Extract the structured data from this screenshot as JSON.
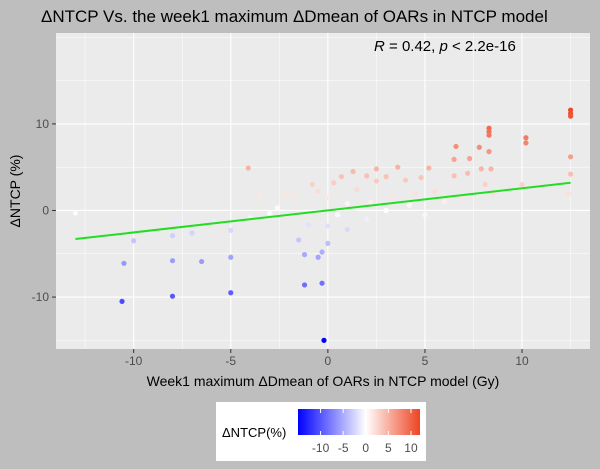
{
  "chart_data": {
    "type": "scatter",
    "title": "ΔNTCP Vs. the week1 maximum ΔDmean of OARs in NTCP model",
    "annotation": {
      "r_label": "R",
      "r_value": " = 0.42, ",
      "p_label": "p",
      "p_value": " < 2.2e-16"
    },
    "xlabel": "Week1 maximum ΔDmean of OARs in NTCP model (Gy)",
    "ylabel": "ΔNTCP (%)",
    "xlim": [
      -14,
      13.5
    ],
    "ylim": [
      -16,
      20.5
    ],
    "x_ticks": [
      -10,
      -5,
      0,
      5,
      10
    ],
    "y_ticks": [
      -10,
      0,
      10
    ],
    "grid": true,
    "regression_line": {
      "x": [
        -13,
        12.5
      ],
      "y": [
        -3.3,
        3.2
      ],
      "color": "#22dd22"
    },
    "color_scale": {
      "title": "ΔNTCP(%)",
      "ticks": [
        -10,
        -5,
        0,
        5,
        10
      ],
      "low": "#0000ff",
      "mid": "#ffffff",
      "high": "#ee4422",
      "limits": [
        -15,
        12
      ]
    },
    "points": [
      {
        "x": -13,
        "y": -0.3
      },
      {
        "x": -10.6,
        "y": -10.5
      },
      {
        "x": -10.5,
        "y": -6.1
      },
      {
        "x": -10,
        "y": -3.5
      },
      {
        "x": -8,
        "y": -9.9
      },
      {
        "x": -8,
        "y": -5.8
      },
      {
        "x": -8,
        "y": -2.9
      },
      {
        "x": -7.8,
        "y": -1.3
      },
      {
        "x": -7,
        "y": -2.6
      },
      {
        "x": -6.5,
        "y": -5.9
      },
      {
        "x": -5.9,
        "y": -1.2
      },
      {
        "x": -5,
        "y": -9.5
      },
      {
        "x": -5,
        "y": -5.4
      },
      {
        "x": -5,
        "y": -2.3
      },
      {
        "x": -4.1,
        "y": 4.9
      },
      {
        "x": -4,
        "y": -0.8
      },
      {
        "x": -3.5,
        "y": 1.6
      },
      {
        "x": -3,
        "y": -0.3
      },
      {
        "x": -2.6,
        "y": 0.3
      },
      {
        "x": -2.2,
        "y": 1.7
      },
      {
        "x": -1.8,
        "y": 1.7
      },
      {
        "x": -1.5,
        "y": -3.4
      },
      {
        "x": -1.2,
        "y": -8.6
      },
      {
        "x": -1.2,
        "y": -5.1
      },
      {
        "x": -1,
        "y": -1.7
      },
      {
        "x": -0.8,
        "y": 3
      },
      {
        "x": -0.5,
        "y": 2.2
      },
      {
        "x": -0.5,
        "y": -5.4
      },
      {
        "x": -0.3,
        "y": -8.4
      },
      {
        "x": -0.3,
        "y": -4.8
      },
      {
        "x": -0.2,
        "y": -15
      },
      {
        "x": 0,
        "y": -3.8
      },
      {
        "x": 0,
        "y": -1.8
      },
      {
        "x": 0,
        "y": 1.5
      },
      {
        "x": 0.3,
        "y": 3.2
      },
      {
        "x": 0.5,
        "y": -0.5
      },
      {
        "x": 0.7,
        "y": 3.9
      },
      {
        "x": 1,
        "y": 0.8
      },
      {
        "x": 1,
        "y": -2.2
      },
      {
        "x": 1.3,
        "y": 4.5
      },
      {
        "x": 1.5,
        "y": 2.4
      },
      {
        "x": 2,
        "y": 4
      },
      {
        "x": 2,
        "y": -1
      },
      {
        "x": 2.2,
        "y": 1
      },
      {
        "x": 2.5,
        "y": 4.8
      },
      {
        "x": 2.5,
        "y": 3.4
      },
      {
        "x": 3,
        "y": 3.9
      },
      {
        "x": 3,
        "y": 0
      },
      {
        "x": 3.3,
        "y": 1.6
      },
      {
        "x": 3.6,
        "y": 5
      },
      {
        "x": 4,
        "y": 3.5
      },
      {
        "x": 4.2,
        "y": 0.6
      },
      {
        "x": 4.5,
        "y": 2
      },
      {
        "x": 4.8,
        "y": 3.8
      },
      {
        "x": 5,
        "y": -0.5
      },
      {
        "x": 5.2,
        "y": 4.9
      },
      {
        "x": 5.5,
        "y": 2.2
      },
      {
        "x": 6,
        "y": 1
      },
      {
        "x": 6.5,
        "y": 4
      },
      {
        "x": 6.5,
        "y": 5.9
      },
      {
        "x": 6.6,
        "y": 7.4
      },
      {
        "x": 6.9,
        "y": 1.6
      },
      {
        "x": 7.2,
        "y": 4.3
      },
      {
        "x": 7.3,
        "y": 6
      },
      {
        "x": 7.8,
        "y": 7.3
      },
      {
        "x": 7.9,
        "y": 4.8
      },
      {
        "x": 8.1,
        "y": 3
      },
      {
        "x": 8.3,
        "y": 9.5
      },
      {
        "x": 8.3,
        "y": 9.1
      },
      {
        "x": 8.3,
        "y": 8.7
      },
      {
        "x": 8.3,
        "y": 6.8
      },
      {
        "x": 8.4,
        "y": 4.8
      },
      {
        "x": 8.5,
        "y": 1.9
      },
      {
        "x": 10.2,
        "y": 8.4
      },
      {
        "x": 10.2,
        "y": 7.8
      },
      {
        "x": 10,
        "y": 3
      },
      {
        "x": 12.5,
        "y": 11.6
      },
      {
        "x": 12.5,
        "y": 11.2
      },
      {
        "x": 12.5,
        "y": 10.9
      },
      {
        "x": 12.5,
        "y": 6.2
      },
      {
        "x": 12.5,
        "y": 4.2
      },
      {
        "x": 12.4,
        "y": 2
      }
    ]
  }
}
